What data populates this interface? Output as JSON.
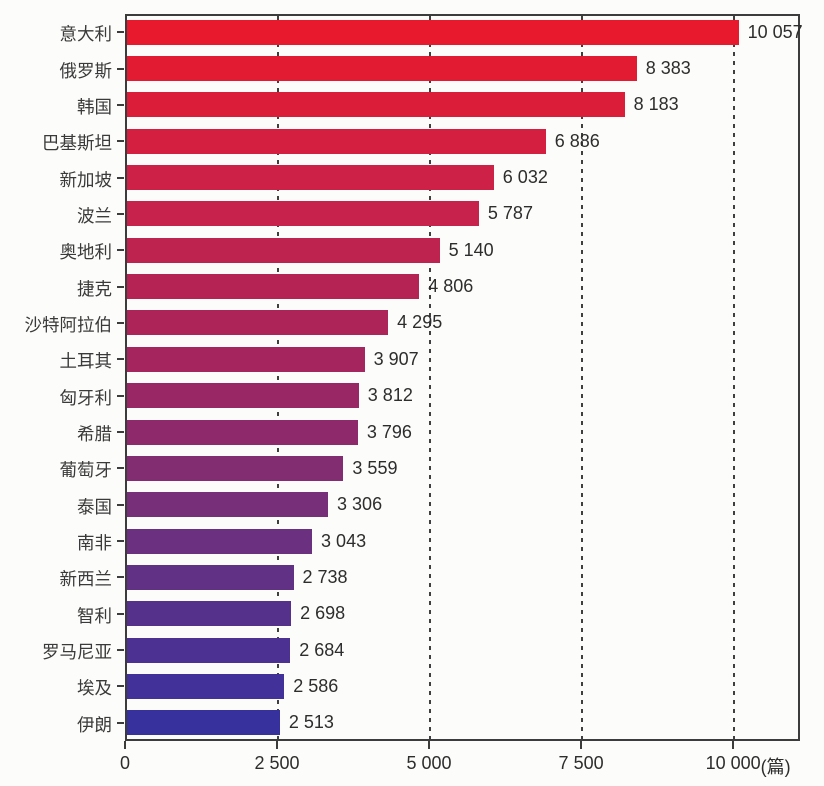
{
  "chart_data": {
    "type": "bar",
    "orientation": "horizontal",
    "title": "",
    "xlabel": "",
    "ylabel": "",
    "unit_label": "(篇)",
    "xlim": [
      0,
      11100
    ],
    "grid": "dashed vertical gridlines at x ticks (except 0)",
    "legend_position": "none",
    "categories": [
      "意大利",
      "俄罗斯",
      "韩国",
      "巴基斯坦",
      "新加坡",
      "波兰",
      "奥地利",
      "捷克",
      "沙特阿拉伯",
      "土耳其",
      "匈牙利",
      "希腊",
      "葡萄牙",
      "泰国",
      "南非",
      "新西兰",
      "智利",
      "罗马尼亚",
      "埃及",
      "伊朗"
    ],
    "values": [
      10057,
      8383,
      8183,
      6886,
      6032,
      5787,
      5140,
      4806,
      4295,
      3907,
      3812,
      3796,
      3559,
      3306,
      3043,
      2738,
      2698,
      2684,
      2586,
      2513
    ],
    "value_labels": [
      "10 057",
      "8 383",
      "8 183",
      "6 886",
      "6 032",
      "5 787",
      "5 140",
      "4 806",
      "4 295",
      "3 907",
      "3 812",
      "3 796",
      "3 559",
      "3 306",
      "3 043",
      "2 738",
      "2 698",
      "2 684",
      "2 586",
      "2 513"
    ],
    "bar_colors": [
      "#E8192C",
      "#E21B33",
      "#DB1D3A",
      "#D51F40",
      "#CE2147",
      "#C6224C",
      "#BE2350",
      "#B52355",
      "#AD2459",
      "#A5255E",
      "#992765",
      "#8E2A6C",
      "#822C72",
      "#772F79",
      "#6B3180",
      "#613186",
      "#56318C",
      "#4C3192",
      "#413198",
      "#37319E"
    ],
    "x_ticks": [
      {
        "value": 0,
        "label": "0"
      },
      {
        "value": 2500,
        "label": "2 500"
      },
      {
        "value": 5000,
        "label": "5 000"
      },
      {
        "value": 7500,
        "label": "7 500"
      },
      {
        "value": 10000,
        "label": "10 000"
      }
    ]
  },
  "colors": {
    "background": "#fcfcfa",
    "axis": "#3c3c3c",
    "text": "#2d2d2d",
    "gridline": "#3f3f3f"
  }
}
